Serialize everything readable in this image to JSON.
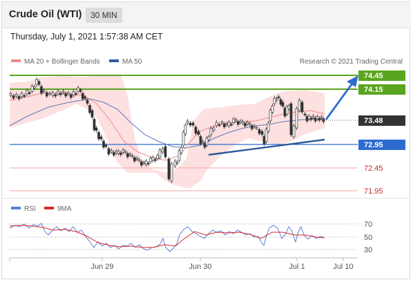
{
  "header": {
    "title": "Crude Oil (WTI)",
    "timeframe": "30 MIN"
  },
  "datetime": "Thursday, July 1, 2021 1:57:38 AM CET",
  "legend": {
    "ma20": {
      "label": "MA 20 + Bollinger Bands",
      "color": "#f08a8a"
    },
    "ma50": {
      "label": "MA 50",
      "color": "#2e5b9a"
    },
    "rsi": {
      "label": "RSI",
      "color": "#5b7fd6"
    },
    "ma9": {
      "label": "9MA",
      "color": "#d62728"
    }
  },
  "credit": "Research © 2021 Trading Central",
  "price_levels": {
    "r2": "74.45",
    "r1": "74.15",
    "last": "73.48",
    "s1": "72.95",
    "s2": "72.45",
    "s3": "71.95"
  },
  "colors": {
    "resistance": "#5aa51f",
    "support": "#2e6bd1",
    "last": "#333333",
    "red": "#d62728",
    "band": "#fde0e0"
  },
  "rsi_ticks": [
    "70",
    "50",
    "30"
  ],
  "x_axis": [
    "Jun 29",
    "Jun 30",
    "Jul 1",
    "Jul 10"
  ]
}
